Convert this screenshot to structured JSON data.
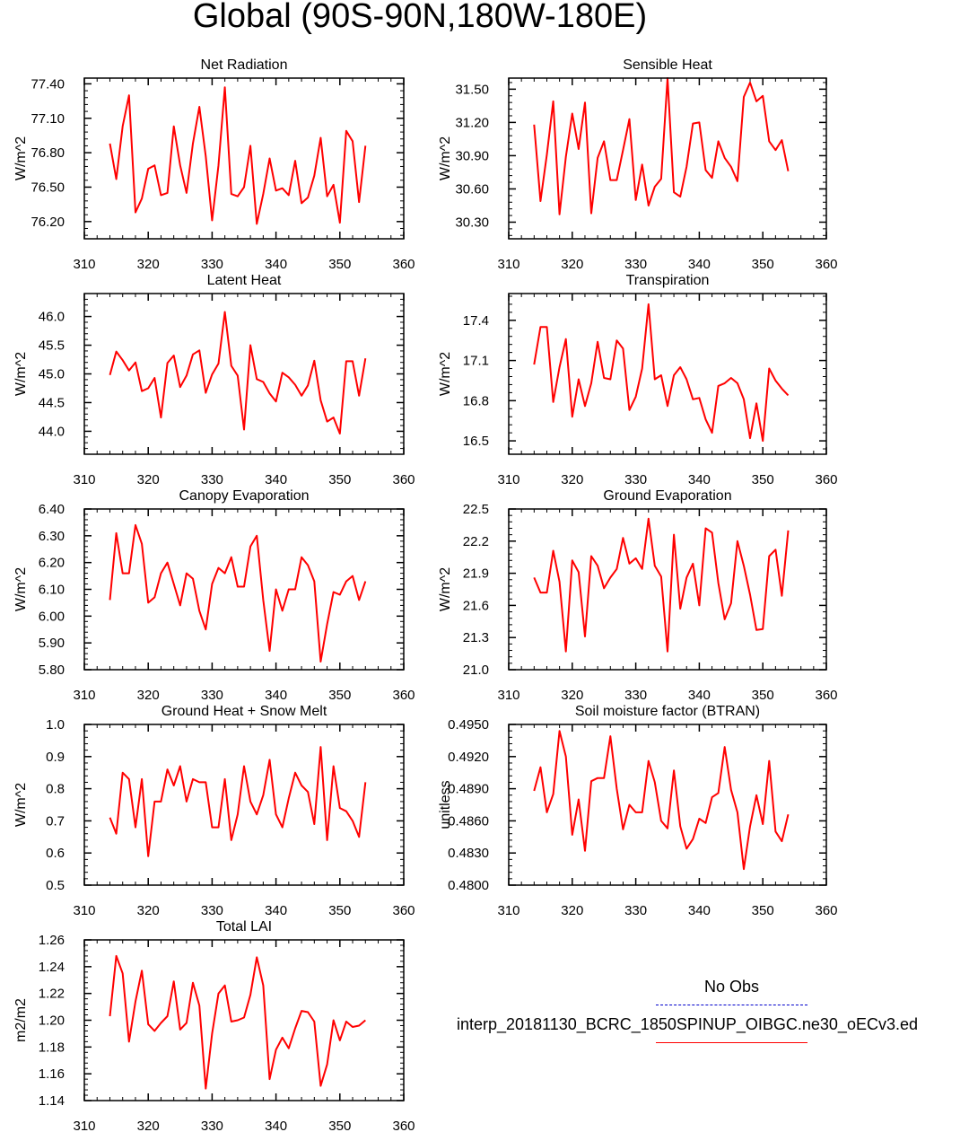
{
  "title": "Global (90S-90N,180W-180E)",
  "legend": {
    "items": [
      {
        "label": "No Obs",
        "color": "#0000cc",
        "style": "dashed"
      },
      {
        "label": "interp_20181130_BCRC_1850SPINUP_OIBGC.ne30_oECv3.ed",
        "color": "#ff0000",
        "style": "solid"
      }
    ]
  },
  "chart_data": [
    {
      "type": "line",
      "title": "Net Radiation",
      "ylabel": "W/m^2",
      "xlabel": "",
      "xlim": [
        310,
        360
      ],
      "ylim": [
        76.05,
        77.45
      ],
      "xticks": [
        310,
        320,
        330,
        340,
        350,
        360
      ],
      "yticks": [
        76.2,
        76.5,
        76.8,
        77.1,
        77.4
      ],
      "ydecimals": 2,
      "x_start": 314,
      "series": [
        {
          "name": "interp_20181130_BCRC_1850SPINUP_OIBGC.ne30_oECv3.ed",
          "color": "#ff0000",
          "values": [
            76.88,
            76.57,
            77.03,
            77.3,
            76.28,
            76.4,
            76.66,
            76.69,
            76.43,
            76.45,
            77.03,
            76.69,
            76.45,
            76.88,
            77.2,
            76.77,
            76.21,
            76.69,
            77.37,
            76.44,
            76.42,
            76.5,
            76.86,
            76.18,
            76.44,
            76.75,
            76.47,
            76.49,
            76.43,
            76.73,
            76.36,
            76.41,
            76.6,
            76.93,
            76.42,
            76.52,
            76.19,
            76.99,
            76.9,
            76.37,
            76.86
          ]
        }
      ]
    },
    {
      "type": "line",
      "title": "Sensible Heat",
      "ylabel": "W/m^2",
      "xlabel": "",
      "xlim": [
        310,
        360
      ],
      "ylim": [
        30.15,
        31.6
      ],
      "xticks": [
        310,
        320,
        330,
        340,
        350,
        360
      ],
      "yticks": [
        30.3,
        30.6,
        30.9,
        31.2,
        31.5
      ],
      "ydecimals": 2,
      "x_start": 314,
      "series": [
        {
          "name": "interp_20181130_BCRC_1850SPINUP_OIBGC.ne30_oECv3.ed",
          "color": "#ff0000",
          "values": [
            31.18,
            30.49,
            30.91,
            31.39,
            30.37,
            30.89,
            31.28,
            30.96,
            31.38,
            30.38,
            30.88,
            31.03,
            30.68,
            30.68,
            30.95,
            31.23,
            30.5,
            30.82,
            30.45,
            30.62,
            30.69,
            31.6,
            30.57,
            30.53,
            30.8,
            31.19,
            31.2,
            30.77,
            30.7,
            31.03,
            30.88,
            30.8,
            30.67,
            31.43,
            31.56,
            31.39,
            31.44,
            31.03,
            30.95,
            31.04,
            30.76
          ]
        }
      ]
    },
    {
      "type": "line",
      "title": "Latent Heat",
      "ylabel": "W/m^2",
      "xlabel": "",
      "xlim": [
        310,
        360
      ],
      "ylim": [
        43.6,
        46.4
      ],
      "xticks": [
        310,
        320,
        330,
        340,
        350,
        360
      ],
      "yticks": [
        44.0,
        44.5,
        45.0,
        45.5,
        46.0
      ],
      "ydecimals": 1,
      "x_start": 314,
      "series": [
        {
          "name": "interp_20181130_BCRC_1850SPINUP_OIBGC.ne30_oECv3.ed",
          "color": "#ff0000",
          "values": [
            44.98,
            45.39,
            45.24,
            45.06,
            45.2,
            44.7,
            44.75,
            44.93,
            44.24,
            45.19,
            45.32,
            44.77,
            44.97,
            45.34,
            45.41,
            44.67,
            44.99,
            45.18,
            46.08,
            45.14,
            44.97,
            44.03,
            45.5,
            44.91,
            44.86,
            44.66,
            44.52,
            45.02,
            44.94,
            44.81,
            44.62,
            44.8,
            45.23,
            44.54,
            44.17,
            44.24,
            43.96,
            45.22,
            45.22,
            44.62,
            45.27
          ]
        }
      ]
    },
    {
      "type": "line",
      "title": "Transpiration",
      "ylabel": "W/m^2",
      "xlabel": "",
      "xlim": [
        310,
        360
      ],
      "ylim": [
        16.4,
        17.6
      ],
      "xticks": [
        310,
        320,
        330,
        340,
        350,
        360
      ],
      "yticks": [
        16.5,
        16.8,
        17.1,
        17.4
      ],
      "ydecimals": 1,
      "x_start": 314,
      "series": [
        {
          "name": "interp_20181130_BCRC_1850SPINUP_OIBGC.ne30_oECv3.ed",
          "color": "#ff0000",
          "values": [
            17.07,
            17.35,
            17.35,
            16.79,
            17.05,
            17.26,
            16.68,
            16.96,
            16.76,
            16.93,
            17.24,
            16.97,
            16.96,
            17.25,
            17.19,
            16.73,
            16.83,
            17.04,
            17.52,
            16.96,
            16.99,
            16.76,
            16.99,
            17.05,
            16.96,
            16.81,
            16.82,
            16.66,
            16.56,
            16.91,
            16.93,
            16.97,
            16.93,
            16.81,
            16.52,
            16.78,
            16.5,
            17.04,
            16.95,
            16.89,
            16.84
          ]
        }
      ]
    },
    {
      "type": "line",
      "title": "Canopy Evaporation",
      "ylabel": "W/m^2",
      "xlabel": "",
      "xlim": [
        310,
        360
      ],
      "ylim": [
        5.8,
        6.4
      ],
      "xticks": [
        310,
        320,
        330,
        340,
        350,
        360
      ],
      "yticks": [
        5.8,
        5.9,
        6.0,
        6.1,
        6.2,
        6.3,
        6.4
      ],
      "ydecimals": 2,
      "x_start": 314,
      "series": [
        {
          "name": "interp_20181130_BCRC_1850SPINUP_OIBGC.ne30_oECv3.ed",
          "color": "#ff0000",
          "values": [
            6.06,
            6.31,
            6.16,
            6.16,
            6.34,
            6.27,
            6.05,
            6.07,
            6.16,
            6.2,
            6.12,
            6.04,
            6.16,
            6.14,
            6.02,
            5.95,
            6.12,
            6.18,
            6.16,
            6.22,
            6.11,
            6.11,
            6.26,
            6.3,
            6.06,
            5.87,
            6.1,
            6.02,
            6.1,
            6.1,
            6.22,
            6.19,
            6.13,
            5.83,
            5.97,
            6.09,
            6.08,
            6.13,
            6.15,
            6.06,
            6.13
          ]
        }
      ]
    },
    {
      "type": "line",
      "title": "Ground Evaporation",
      "ylabel": "W/m^2",
      "xlabel": "",
      "xlim": [
        310,
        360
      ],
      "ylim": [
        21.0,
        22.5
      ],
      "xticks": [
        310,
        320,
        330,
        340,
        350,
        360
      ],
      "yticks": [
        21.0,
        21.3,
        21.6,
        21.9,
        22.2,
        22.5
      ],
      "ydecimals": 1,
      "x_start": 314,
      "series": [
        {
          "name": "interp_20181130_BCRC_1850SPINUP_OIBGC.ne30_oECv3.ed",
          "color": "#ff0000",
          "values": [
            21.86,
            21.72,
            21.72,
            22.11,
            21.82,
            21.17,
            22.02,
            21.91,
            21.31,
            22.06,
            21.97,
            21.76,
            21.86,
            21.94,
            22.23,
            21.99,
            22.04,
            21.94,
            22.41,
            21.97,
            21.87,
            21.17,
            22.26,
            21.57,
            21.86,
            21.99,
            21.6,
            22.32,
            22.28,
            21.81,
            21.47,
            21.62,
            22.2,
            21.97,
            21.7,
            21.37,
            21.38,
            22.06,
            22.12,
            21.69,
            22.3
          ]
        }
      ]
    },
    {
      "type": "line",
      "title": "Ground Heat + Snow Melt",
      "ylabel": "W/m^2",
      "xlabel": "",
      "xlim": [
        310,
        360
      ],
      "ylim": [
        0.5,
        1.0
      ],
      "xticks": [
        310,
        320,
        330,
        340,
        350,
        360
      ],
      "yticks": [
        0.5,
        0.6,
        0.7,
        0.8,
        0.9,
        1.0
      ],
      "ydecimals": 1,
      "x_start": 314,
      "series": [
        {
          "name": "interp_20181130_BCRC_1850SPINUP_OIBGC.ne30_oECv3.ed",
          "color": "#ff0000",
          "values": [
            0.71,
            0.66,
            0.85,
            0.83,
            0.68,
            0.83,
            0.59,
            0.76,
            0.76,
            0.86,
            0.81,
            0.87,
            0.76,
            0.83,
            0.82,
            0.82,
            0.68,
            0.68,
            0.83,
            0.64,
            0.72,
            0.87,
            0.76,
            0.72,
            0.78,
            0.89,
            0.72,
            0.68,
            0.77,
            0.85,
            0.81,
            0.79,
            0.69,
            0.93,
            0.64,
            0.87,
            0.74,
            0.73,
            0.7,
            0.65,
            0.82
          ]
        }
      ]
    },
    {
      "type": "line",
      "title": "Soil moisture factor (BTRAN)",
      "ylabel": "unitless",
      "xlabel": "",
      "xlim": [
        310,
        360
      ],
      "ylim": [
        0.48,
        0.495
      ],
      "xticks": [
        310,
        320,
        330,
        340,
        350,
        360
      ],
      "yticks": [
        0.48,
        0.483,
        0.486,
        0.489,
        0.492,
        0.495
      ],
      "ydecimals": 4,
      "x_start": 314,
      "series": [
        {
          "name": "interp_20181130_BCRC_1850SPINUP_OIBGC.ne30_oECv3.ed",
          "color": "#ff0000",
          "values": [
            0.4888,
            0.491,
            0.4868,
            0.4885,
            0.4944,
            0.492,
            0.4847,
            0.488,
            0.4832,
            0.4897,
            0.49,
            0.49,
            0.4939,
            0.489,
            0.4852,
            0.4875,
            0.4868,
            0.4868,
            0.4916,
            0.4896,
            0.486,
            0.4853,
            0.4907,
            0.4855,
            0.4834,
            0.4843,
            0.4862,
            0.4858,
            0.4882,
            0.4886,
            0.4929,
            0.4889,
            0.4868,
            0.4815,
            0.4855,
            0.4884,
            0.4857,
            0.4916,
            0.485,
            0.4841,
            0.4866
          ]
        }
      ]
    },
    {
      "type": "line",
      "title": "Total LAI",
      "ylabel": "m2/m2",
      "xlabel": "",
      "xlim": [
        310,
        360
      ],
      "ylim": [
        1.14,
        1.26
      ],
      "xticks": [
        310,
        320,
        330,
        340,
        350,
        360
      ],
      "yticks": [
        1.14,
        1.16,
        1.18,
        1.2,
        1.22,
        1.24,
        1.26
      ],
      "ydecimals": 2,
      "x_start": 314,
      "series": [
        {
          "name": "interp_20181130_BCRC_1850SPINUP_OIBGC.ne30_oECv3.ed",
          "color": "#ff0000",
          "values": [
            1.203,
            1.248,
            1.235,
            1.184,
            1.214,
            1.237,
            1.197,
            1.192,
            1.198,
            1.203,
            1.229,
            1.193,
            1.198,
            1.228,
            1.211,
            1.149,
            1.19,
            1.22,
            1.226,
            1.199,
            1.2,
            1.202,
            1.219,
            1.247,
            1.226,
            1.156,
            1.178,
            1.187,
            1.179,
            1.194,
            1.207,
            1.206,
            1.199,
            1.151,
            1.167,
            1.2,
            1.185,
            1.199,
            1.195,
            1.196,
            1.2
          ]
        }
      ]
    }
  ]
}
